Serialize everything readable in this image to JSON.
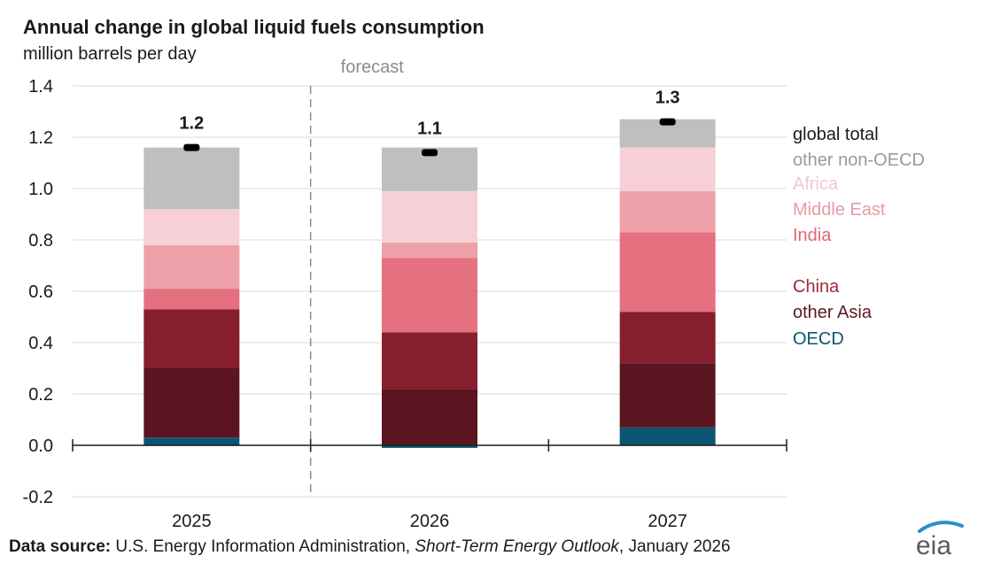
{
  "header": {
    "title": "Annual change in global liquid fuels consumption",
    "units": "million barrels per day"
  },
  "source": {
    "label": "Data source:",
    "text_1": "U.S. Energy Information Administration,",
    "publication": "Short-Term Energy Outlook",
    "text_2": ", January 2026"
  },
  "logo": {
    "text": "eia",
    "arc_color": "#2a8fc9"
  },
  "chart_data": {
    "type": "bar",
    "stacked": true,
    "categories": [
      "2025",
      "2026",
      "2027"
    ],
    "ylim": [
      -0.2,
      1.4
    ],
    "yticks": [
      -0.2,
      0.0,
      0.2,
      0.4,
      0.6,
      0.8,
      1.0,
      1.2,
      1.4
    ],
    "ytick_labels": [
      "-0.2",
      "0.0",
      "0.2",
      "0.4",
      "0.6",
      "0.8",
      "1.0",
      "1.2",
      "1.4"
    ],
    "grid": true,
    "forecast_label": "forecast",
    "forecast_divider_between": [
      "2025",
      "2026"
    ],
    "series": [
      {
        "name": "OECD",
        "color": "#0b5572",
        "values": [
          0.03,
          -0.01,
          0.07
        ]
      },
      {
        "name": "other Asia",
        "color": "#5b1520",
        "values": [
          0.27,
          0.22,
          0.25
        ]
      },
      {
        "name": "China",
        "color": "#861e2e",
        "values": [
          0.23,
          0.22,
          0.2
        ]
      },
      {
        "name": "India",
        "color": "#e47080",
        "values": [
          0.08,
          0.29,
          0.31
        ]
      },
      {
        "name": "Middle East",
        "color": "#eda0a8",
        "values": [
          0.17,
          0.06,
          0.16
        ]
      },
      {
        "name": "Africa",
        "color": "#f6d0d6",
        "values": [
          0.14,
          0.2,
          0.17
        ]
      },
      {
        "name": "other non-OECD",
        "color": "#bfbfbf",
        "values": [
          0.24,
          0.17,
          0.11
        ]
      }
    ],
    "global_total": {
      "name": "global total",
      "color": "#000000",
      "values": [
        1.16,
        1.14,
        1.26
      ],
      "labels": [
        "1.2",
        "1.1",
        "1.3"
      ]
    },
    "legend": [
      {
        "name": "global total",
        "color": "#1a1a1a"
      },
      {
        "name": "other non-OECD",
        "color": "#9a9a9a"
      },
      {
        "name": "Africa",
        "color": "#f4c6cd"
      },
      {
        "name": "Middle East",
        "color": "#e89aa4"
      },
      {
        "name": "India",
        "color": "#e06676"
      },
      {
        "name": "China",
        "color": "#a3283b"
      },
      {
        "name": "other Asia",
        "color": "#5e1822"
      },
      {
        "name": "OECD",
        "color": "#0b5572"
      }
    ],
    "legend_placement": "right"
  }
}
